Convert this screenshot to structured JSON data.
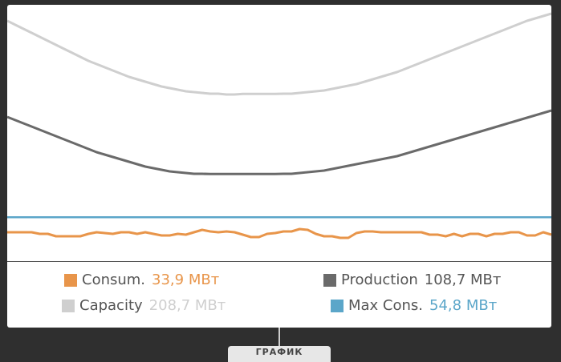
{
  "legend": {
    "consum": {
      "label": "Consum.",
      "value": "33,9 МВт",
      "color": "#e8954a"
    },
    "production": {
      "label": "Production",
      "value": "108,7 МВт",
      "color": "#6a6a6a"
    },
    "capacity": {
      "label": "Capacity",
      "value": "208,7 МВт",
      "color": "#cfcfcf"
    },
    "maxcons": {
      "label": "Max Cons.",
      "value": "54,8 МВт",
      "color": "#5ba6c9"
    }
  },
  "tab": {
    "label": "ГРАФИК"
  },
  "chart_data": {
    "type": "line",
    "x": [
      0,
      1,
      2,
      3,
      4,
      5,
      6,
      7,
      8,
      9,
      10,
      11,
      12,
      13,
      14,
      15,
      16,
      17,
      18,
      19,
      20,
      21,
      22,
      23,
      24,
      25,
      26,
      27,
      28,
      29,
      30,
      31,
      32,
      33,
      34,
      35,
      36,
      37,
      38,
      39,
      40,
      41,
      42,
      43,
      44,
      45,
      46,
      47,
      48,
      49,
      50,
      51,
      52,
      53,
      54,
      55,
      56,
      57,
      58,
      59,
      60,
      61,
      62,
      63,
      64,
      65,
      66,
      67
    ],
    "series": [
      {
        "name": "Capacity",
        "color": "#cfcfcf",
        "values": [
          300,
          295,
          290,
          285,
          280,
          275,
          270,
          265,
          260,
          255,
          250,
          246,
          242,
          238,
          234,
          230,
          227,
          224,
          221,
          218,
          216,
          214,
          212,
          211,
          210,
          209,
          209,
          208,
          208,
          208.7,
          208.7,
          208.7,
          208.7,
          208.7,
          209,
          209,
          210,
          211,
          212,
          213,
          215,
          217,
          219,
          221,
          224,
          227,
          230,
          233,
          236,
          240,
          244,
          248,
          252,
          256,
          260,
          264,
          268,
          272,
          276,
          280,
          284,
          288,
          292,
          296,
          300,
          303,
          306,
          309
        ]
      },
      {
        "name": "Production",
        "color": "#6a6a6a",
        "values": [
          180,
          176,
          172,
          168,
          164,
          160,
          156,
          152,
          148,
          144,
          140,
          136,
          133,
          130,
          127,
          124,
          121,
          118,
          116,
          114,
          112,
          111,
          110,
          109,
          109,
          108.7,
          108.7,
          108.7,
          108.7,
          108.7,
          108.7,
          108.7,
          108.7,
          108.7,
          109,
          109,
          110,
          111,
          112,
          113,
          115,
          117,
          119,
          121,
          123,
          125,
          127,
          129,
          131,
          134,
          137,
          140,
          143,
          146,
          149,
          152,
          155,
          158,
          161,
          164,
          167,
          170,
          173,
          176,
          179,
          182,
          185,
          188
        ]
      },
      {
        "name": "Max Cons.",
        "color": "#5ba6c9",
        "values": [
          54.8,
          54.8,
          54.8,
          54.8,
          54.8,
          54.8,
          54.8,
          54.8,
          54.8,
          54.8,
          54.8,
          54.8,
          54.8,
          54.8,
          54.8,
          54.8,
          54.8,
          54.8,
          54.8,
          54.8,
          54.8,
          54.8,
          54.8,
          54.8,
          54.8,
          54.8,
          54.8,
          54.8,
          54.8,
          54.8,
          54.8,
          54.8,
          54.8,
          54.8,
          54.8,
          54.8,
          54.8,
          54.8,
          54.8,
          54.8,
          54.8,
          54.8,
          54.8,
          54.8,
          54.8,
          54.8,
          54.8,
          54.8,
          54.8,
          54.8,
          54.8,
          54.8,
          54.8,
          54.8,
          54.8,
          54.8,
          54.8,
          54.8,
          54.8,
          54.8,
          54.8,
          54.8,
          54.8,
          54.8,
          54.8,
          54.8,
          54.8,
          54.8
        ]
      },
      {
        "name": "Consum.",
        "color": "#e8954a",
        "values": [
          36,
          36,
          36,
          36,
          34,
          34,
          31,
          31,
          31,
          31,
          34,
          36,
          35,
          34,
          36,
          36,
          34,
          36,
          34,
          32,
          32,
          34,
          33,
          36,
          39,
          37,
          36,
          37,
          36,
          33,
          30,
          30,
          34,
          35,
          37,
          37,
          40,
          39,
          34,
          31,
          31,
          29,
          29,
          35,
          37,
          37,
          36,
          36,
          36,
          36,
          36,
          36,
          33,
          33,
          31,
          34,
          31,
          34,
          34,
          31,
          34,
          34,
          36,
          36,
          32,
          32,
          36,
          33
        ]
      }
    ],
    "ylim": [
      0,
      320
    ],
    "grid": false
  }
}
